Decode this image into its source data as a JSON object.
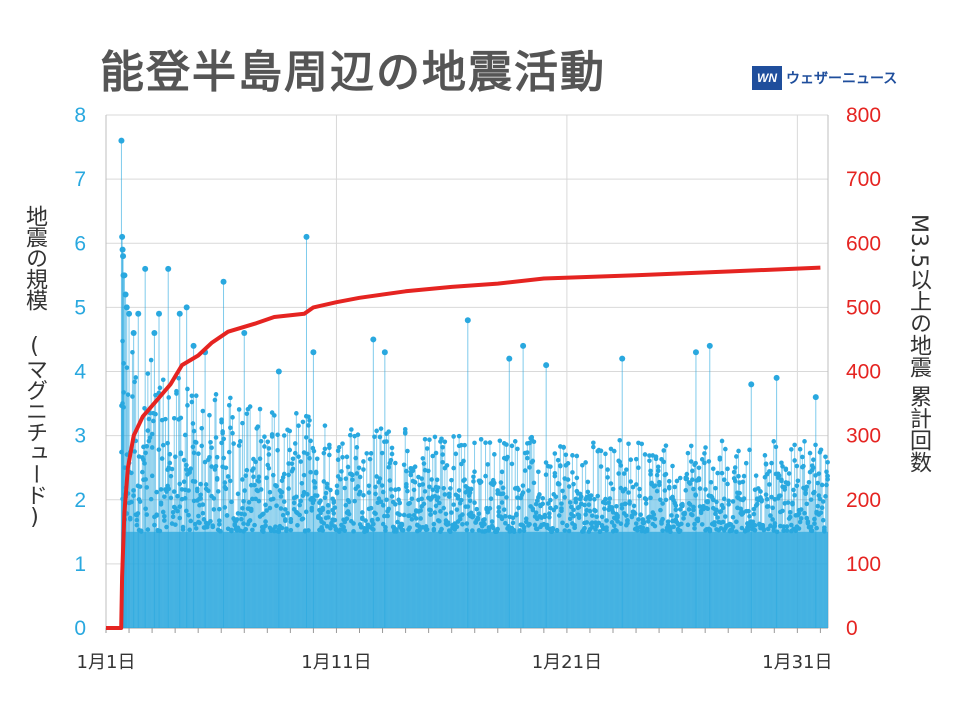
{
  "title": "能登半島周辺の地震活動",
  "brand": {
    "logo": "WN",
    "name": "ウェザーニュース"
  },
  "chart_data": {
    "type": "scatter",
    "title": "能登半島周辺の地震活動",
    "ylabel": "地震の規模 (マグニチュード)",
    "y2label": "M3.5以上の地震 累計回数",
    "xlabel": "",
    "ylim": [
      0,
      8
    ],
    "y2lim": [
      0,
      800
    ],
    "yticks": [
      0,
      1,
      2,
      3,
      4,
      5,
      6,
      7,
      8
    ],
    "y2ticks": [
      0,
      100,
      200,
      300,
      400,
      500,
      600,
      700,
      800
    ],
    "xlim": [
      "1/1 00:00",
      "2/1 08:00"
    ],
    "xticks": [
      {
        "day": 1,
        "label": "1月1日"
      },
      {
        "day": 11,
        "label": "1月11日"
      },
      {
        "day": 21,
        "label": "1月21日"
      },
      {
        "day": 31,
        "label": "1月31日"
      }
    ],
    "grid": true,
    "series": [
      {
        "type": "stem-scatter",
        "axis": "left",
        "color": "#29a8df",
        "baseline_min_magnitude": 1.5,
        "max_magnitude": 4.5,
        "points": [
          {
            "day": 1.67,
            "m": 7.6
          },
          {
            "day": 1.7,
            "m": 6.1
          },
          {
            "day": 1.72,
            "m": 5.9
          },
          {
            "day": 1.74,
            "m": 5.8
          },
          {
            "day": 1.76,
            "m": 5.5
          },
          {
            "day": 1.8,
            "m": 5.5
          },
          {
            "day": 1.85,
            "m": 5.2
          },
          {
            "day": 1.9,
            "m": 5.0
          },
          {
            "day": 2.0,
            "m": 4.9
          },
          {
            "day": 2.2,
            "m": 4.6
          },
          {
            "day": 2.4,
            "m": 4.9
          },
          {
            "day": 2.7,
            "m": 5.6
          },
          {
            "day": 3.1,
            "m": 4.6
          },
          {
            "day": 3.3,
            "m": 4.9
          },
          {
            "day": 3.7,
            "m": 5.6
          },
          {
            "day": 4.2,
            "m": 4.9
          },
          {
            "day": 4.5,
            "m": 5.0
          },
          {
            "day": 4.8,
            "m": 4.4
          },
          {
            "day": 5.3,
            "m": 4.3
          },
          {
            "day": 6.1,
            "m": 5.4
          },
          {
            "day": 7.0,
            "m": 4.6
          },
          {
            "day": 8.5,
            "m": 4.0
          },
          {
            "day": 9.7,
            "m": 6.1
          },
          {
            "day": 10.0,
            "m": 4.3
          },
          {
            "day": 12.6,
            "m": 4.5
          },
          {
            "day": 13.1,
            "m": 4.3
          },
          {
            "day": 16.7,
            "m": 4.8
          },
          {
            "day": 18.5,
            "m": 4.2
          },
          {
            "day": 19.1,
            "m": 4.4
          },
          {
            "day": 20.1,
            "m": 4.1
          },
          {
            "day": 23.4,
            "m": 4.2
          },
          {
            "day": 26.6,
            "m": 4.3
          },
          {
            "day": 27.2,
            "m": 4.4
          },
          {
            "day": 29.0,
            "m": 3.8
          },
          {
            "day": 30.1,
            "m": 3.9
          },
          {
            "day": 31.8,
            "m": 3.6
          }
        ]
      },
      {
        "name": "M3.5以上の地震 累計回数",
        "type": "line",
        "axis": "right",
        "color": "#e52421",
        "points": [
          {
            "day": 1.0,
            "v": 0
          },
          {
            "day": 1.66,
            "v": 0
          },
          {
            "day": 1.7,
            "v": 80
          },
          {
            "day": 1.8,
            "v": 180
          },
          {
            "day": 1.95,
            "v": 250
          },
          {
            "day": 2.2,
            "v": 300
          },
          {
            "day": 2.6,
            "v": 330
          },
          {
            "day": 3.2,
            "v": 355
          },
          {
            "day": 3.8,
            "v": 380
          },
          {
            "day": 4.3,
            "v": 410
          },
          {
            "day": 5.0,
            "v": 425
          },
          {
            "day": 5.6,
            "v": 445
          },
          {
            "day": 6.3,
            "v": 462
          },
          {
            "day": 7.5,
            "v": 475
          },
          {
            "day": 8.3,
            "v": 485
          },
          {
            "day": 9.6,
            "v": 490
          },
          {
            "day": 10.0,
            "v": 500
          },
          {
            "day": 11.0,
            "v": 508
          },
          {
            "day": 12.0,
            "v": 515
          },
          {
            "day": 14.0,
            "v": 525
          },
          {
            "day": 16.0,
            "v": 532
          },
          {
            "day": 18.0,
            "v": 537
          },
          {
            "day": 20.0,
            "v": 545
          },
          {
            "day": 24.0,
            "v": 550
          },
          {
            "day": 28.0,
            "v": 556
          },
          {
            "day": 32.0,
            "v": 562
          }
        ]
      }
    ]
  }
}
